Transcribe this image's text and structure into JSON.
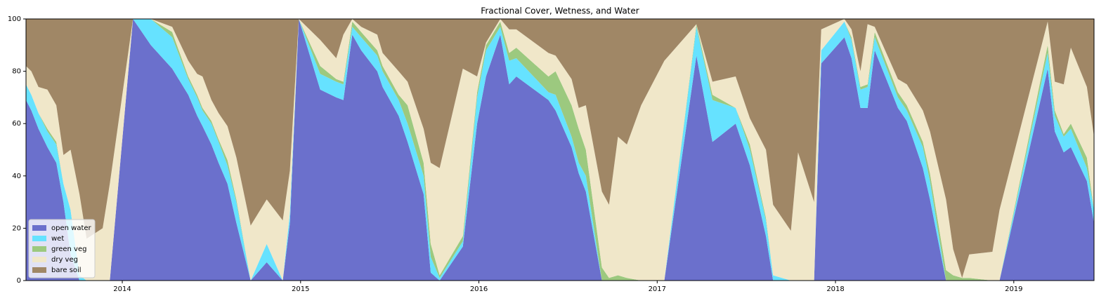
{
  "chart_data": {
    "type": "stacked_area",
    "title": "Fractional Cover, Wetness, and Water",
    "x": [
      2013.46,
      2013.49,
      2013.53,
      2013.58,
      2013.63,
      2013.67,
      2013.71,
      2013.76,
      2013.8,
      2013.89,
      2013.93,
      2014.06,
      2014.16,
      2014.28,
      2014.37,
      2014.42,
      2014.45,
      2014.5,
      2014.54,
      2014.59,
      2014.64,
      2014.72,
      2014.81,
      2014.9,
      2014.94,
      2014.99,
      2015.11,
      2015.2,
      2015.24,
      2015.29,
      2015.34,
      2015.43,
      2015.46,
      2015.55,
      2015.6,
      2015.69,
      2015.73,
      2015.78,
      2015.91,
      2015.99,
      2016.04,
      2016.12,
      2016.17,
      2016.21,
      2016.39,
      2016.43,
      2016.52,
      2016.56,
      2016.6,
      2016.69,
      2016.73,
      2016.78,
      2016.83,
      2016.91,
      2017.04,
      2017.22,
      2017.31,
      2017.44,
      2017.52,
      2017.61,
      2017.65,
      2017.75,
      2017.79,
      2017.88,
      2017.92,
      2018.05,
      2018.09,
      2018.14,
      2018.18,
      2018.22,
      2018.35,
      2018.4,
      2018.49,
      2018.53,
      2018.62,
      2018.66,
      2018.71,
      2018.75,
      2018.88,
      2018.92,
      2019.19,
      2019.23,
      2019.28,
      2019.32,
      2019.41,
      2019.45
    ],
    "series": [
      {
        "name": "open water",
        "color": "#6b70cc",
        "values": [
          69,
          65,
          58,
          51,
          45,
          30,
          10,
          0,
          0,
          0,
          0,
          100,
          90,
          81,
          71,
          63,
          59,
          52,
          45,
          37,
          22,
          0,
          7,
          0,
          22,
          100,
          73,
          70,
          69,
          94,
          88,
          80,
          74,
          63,
          53,
          33,
          3,
          0,
          13,
          60,
          78,
          94,
          75,
          78,
          69,
          65,
          51,
          41,
          34,
          0,
          0,
          0,
          0,
          0,
          0,
          86,
          53,
          60,
          44,
          17,
          0,
          0,
          0,
          0,
          83,
          93,
          85,
          66,
          66,
          88,
          66,
          61,
          43,
          31,
          0,
          0,
          0,
          0,
          0,
          0,
          81,
          57,
          49,
          51,
          38,
          22
        ]
      },
      {
        "name": "wet",
        "color": "#66e2ff",
        "values": [
          6,
          6,
          6,
          6,
          7,
          7,
          17,
          2,
          0,
          0,
          0,
          0,
          10,
          12,
          6,
          7,
          6,
          8,
          8,
          7,
          8,
          0,
          7,
          0,
          4,
          0,
          6,
          6,
          6,
          3,
          5,
          6,
          6,
          6,
          7,
          7,
          6,
          1,
          2,
          10,
          10,
          3,
          9,
          7,
          3,
          6,
          4,
          4,
          6,
          0,
          0,
          0,
          0,
          0,
          0,
          11,
          16,
          6,
          6,
          6,
          2,
          0,
          0,
          0,
          5,
          6,
          7,
          7,
          8,
          5,
          4,
          4,
          8,
          7,
          0,
          0,
          0,
          0,
          0,
          0,
          6,
          6,
          6,
          7,
          5,
          5
        ]
      },
      {
        "name": "green veg",
        "color": "#9cc97f",
        "values": [
          0,
          0,
          0,
          1,
          1,
          0,
          0,
          0,
          0,
          0,
          0,
          0,
          0,
          2,
          1,
          1,
          1,
          1,
          1,
          2,
          1,
          0,
          0,
          0,
          0,
          0,
          3,
          1,
          1,
          2,
          2,
          2,
          2,
          2,
          7,
          5,
          5,
          1,
          2,
          2,
          2,
          2,
          3,
          4,
          6,
          9,
          12,
          13,
          10,
          5,
          1,
          2,
          1,
          0,
          0,
          1,
          2,
          0,
          2,
          1,
          0,
          0,
          0,
          0,
          0,
          0,
          1,
          1,
          1,
          2,
          2,
          2,
          2,
          3,
          4,
          2,
          1,
          1,
          0,
          0,
          3,
          2,
          1,
          2,
          4,
          0
        ]
      },
      {
        "name": "dry veg",
        "color": "#f0e7c9",
        "values": [
          7,
          9,
          10,
          15,
          14,
          11,
          23,
          31,
          16,
          20,
          37,
          0,
          0,
          2,
          6,
          8,
          12,
          8,
          10,
          13,
          16,
          21,
          17,
          23,
          16,
          0,
          10,
          8,
          18,
          1,
          2,
          6,
          5,
          9,
          9,
          13,
          31,
          41,
          64,
          6,
          1,
          1,
          9,
          7,
          9,
          6,
          10,
          8,
          17,
          29,
          28,
          53,
          51,
          67,
          84,
          0,
          5,
          12,
          10,
          26,
          27,
          19,
          49,
          30,
          8,
          1,
          3,
          6,
          23,
          2,
          5,
          8,
          12,
          16,
          27,
          10,
          0,
          9,
          11,
          27,
          9,
          11,
          19,
          29,
          27,
          28
        ]
      },
      {
        "name": "bare soil",
        "color": "#a08766",
        "values": [
          18,
          20,
          26,
          27,
          33,
          52,
          50,
          67,
          84,
          80,
          63,
          0,
          0,
          3,
          16,
          21,
          22,
          31,
          36,
          41,
          53,
          79,
          69,
          77,
          58,
          0,
          8,
          15,
          6,
          0,
          3,
          6,
          13,
          20,
          24,
          42,
          55,
          57,
          19,
          22,
          9,
          0,
          4,
          4,
          13,
          14,
          23,
          34,
          33,
          66,
          71,
          45,
          48,
          33,
          16,
          2,
          24,
          22,
          38,
          50,
          71,
          81,
          51,
          70,
          4,
          0,
          4,
          20,
          2,
          3,
          23,
          25,
          35,
          43,
          69,
          88,
          99,
          90,
          89,
          73,
          1,
          24,
          25,
          11,
          26,
          45
        ]
      }
    ],
    "xlim": [
      2013.46,
      2019.45
    ],
    "xticks": [
      2014,
      2015,
      2016,
      2017,
      2018,
      2019
    ],
    "ylim": [
      0,
      100
    ],
    "yticks": [
      0,
      20,
      40,
      60,
      80,
      100
    ],
    "legend": "lower left"
  }
}
